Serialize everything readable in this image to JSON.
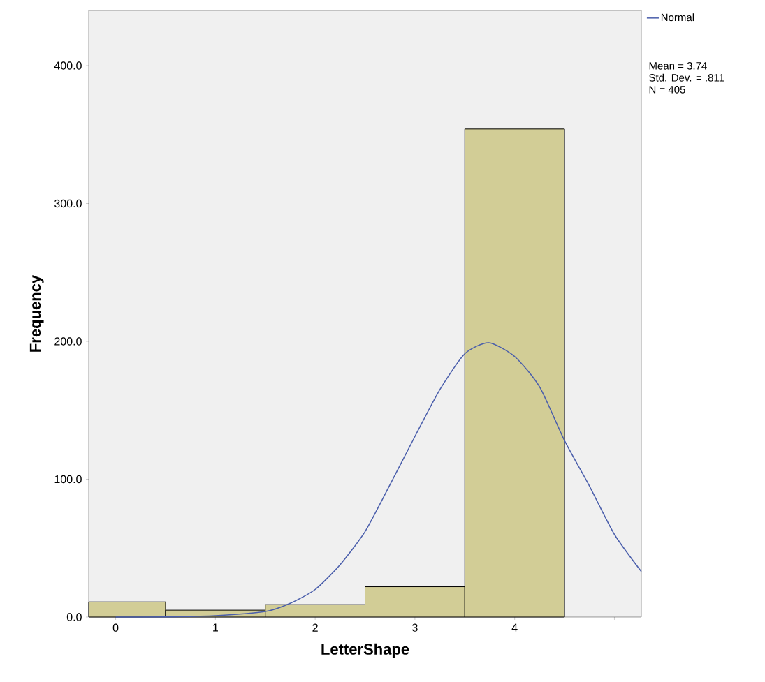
{
  "chart_data": {
    "type": "histogram",
    "xlabel": "LetterShape",
    "ylabel": "Frequency",
    "bins": [
      -0.27,
      0.5,
      1.5,
      2.5,
      3.5,
      4.5
    ],
    "values": [
      11,
      5,
      9,
      22,
      354
    ],
    "color": "#d2cd96",
    "series": [
      {
        "type": "line",
        "name": "Normal",
        "color": "#4a5eab",
        "x": [
          0,
          0.5,
          1,
          1.5,
          1.75,
          2,
          2.25,
          2.5,
          2.75,
          3,
          3.25,
          3.5,
          3.74,
          4,
          4.25,
          4.5,
          4.75,
          5,
          5.27
        ],
        "values": [
          0,
          0.1,
          1,
          4,
          10,
          20,
          38,
          62,
          96,
          131,
          165,
          191,
          199,
          189,
          167,
          128,
          95,
          60,
          33
        ]
      }
    ],
    "xlim": [
      -0.27,
      5.27
    ],
    "ylim": [
      0,
      440
    ],
    "xticks": [
      0,
      1,
      2,
      3,
      4,
      {
        "value": 5,
        "label": null
      }
    ],
    "yticks": [
      {
        "value": 0,
        "label": "0.0"
      },
      {
        "value": 100,
        "label": "100.0"
      },
      {
        "value": 200,
        "label": "200.0"
      },
      {
        "value": 300,
        "label": "300.0"
      },
      {
        "value": 400,
        "label": "400.0"
      }
    ],
    "legend": "top right",
    "annotations": [
      "Mean = 3.74",
      "Std. Dev. = .811",
      "N = 405"
    ]
  }
}
